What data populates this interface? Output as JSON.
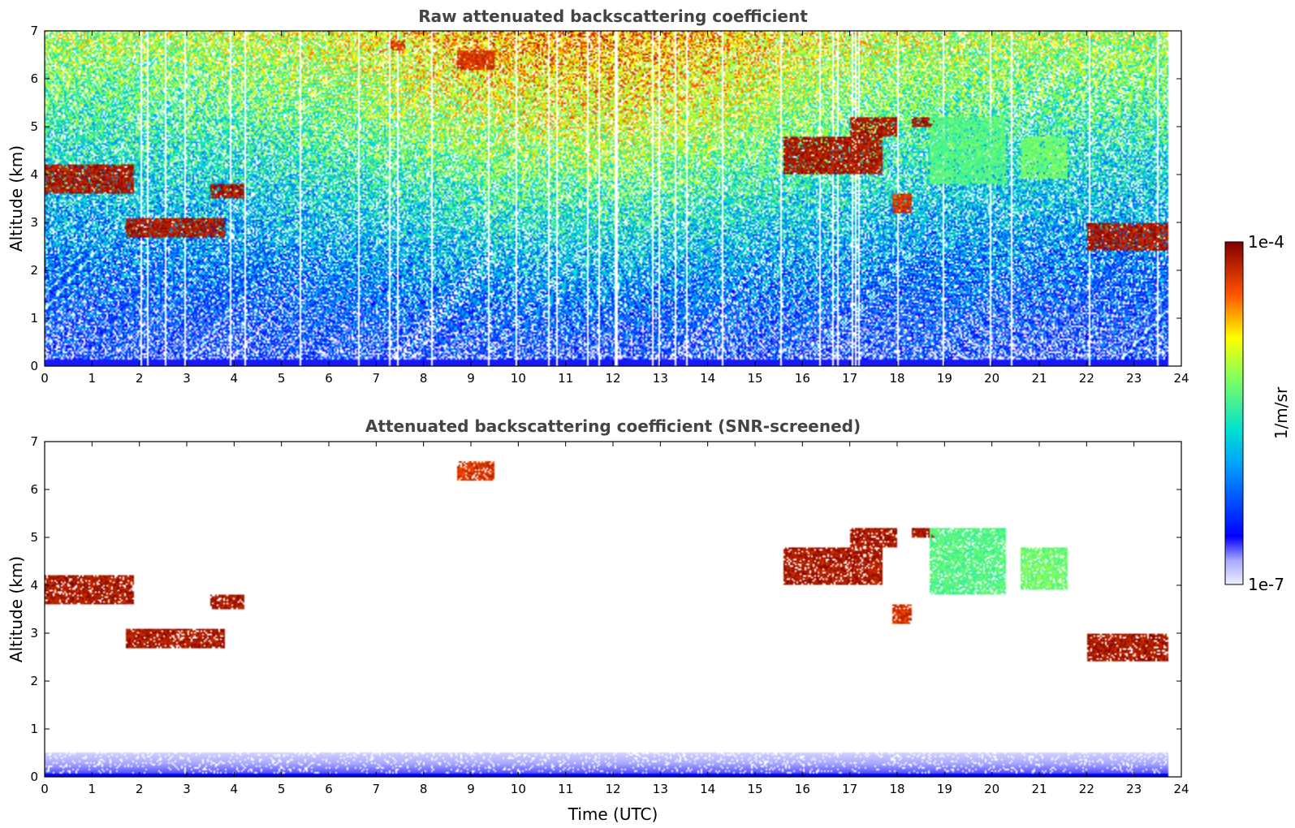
{
  "chart_data": [
    {
      "type": "heatmap",
      "title": "Raw attenuated backscattering coefficient",
      "xlabel": "",
      "ylabel": "Altitude (km)",
      "xlim": [
        0,
        24
      ],
      "ylim": [
        0,
        7
      ],
      "xticks": [
        "0",
        "1",
        "2",
        "3",
        "4",
        "5",
        "6",
        "7",
        "8",
        "9",
        "10",
        "11",
        "12",
        "13",
        "14",
        "15",
        "16",
        "17",
        "18",
        "19",
        "20",
        "21",
        "22",
        "23",
        "24"
      ],
      "yticks": [
        "0",
        "1",
        "2",
        "3",
        "4",
        "5",
        "6",
        "7"
      ],
      "data_end_time": 23.75,
      "background": "noisy",
      "features": [
        {
          "label": "cloud layer",
          "t": [
            0,
            1.9
          ],
          "alt": [
            3.6,
            4.2
          ],
          "intensity": 0.95
        },
        {
          "label": "cloud layer",
          "t": [
            1.7,
            3.8
          ],
          "alt": [
            2.7,
            3.1
          ],
          "intensity": 0.95
        },
        {
          "label": "cloud layer",
          "t": [
            3.5,
            4.2
          ],
          "alt": [
            3.5,
            3.8
          ],
          "intensity": 0.95
        },
        {
          "label": "cloud patch",
          "t": [
            7.3,
            7.6
          ],
          "alt": [
            6.6,
            6.8
          ],
          "intensity": 0.9
        },
        {
          "label": "cloud patch",
          "t": [
            8.7,
            9.5
          ],
          "alt": [
            6.2,
            6.6
          ],
          "intensity": 0.9
        },
        {
          "label": "cloud layer",
          "t": [
            15.6,
            17.7
          ],
          "alt": [
            4.0,
            4.8
          ],
          "intensity": 0.95
        },
        {
          "label": "cloud layer",
          "t": [
            17.0,
            18.0
          ],
          "alt": [
            4.8,
            5.2
          ],
          "intensity": 0.95
        },
        {
          "label": "cloud layer",
          "t": [
            18.3,
            18.8
          ],
          "alt": [
            5.0,
            5.2
          ],
          "intensity": 0.95
        },
        {
          "label": "cloud patch",
          "t": [
            17.9,
            18.3
          ],
          "alt": [
            3.2,
            3.6
          ],
          "intensity": 0.9
        },
        {
          "label": "virga",
          "t": [
            18.7,
            20.3
          ],
          "alt": [
            3.8,
            5.2
          ],
          "intensity": 0.55
        },
        {
          "label": "virga",
          "t": [
            20.6,
            21.6
          ],
          "alt": [
            3.9,
            4.8
          ],
          "intensity": 0.58
        },
        {
          "label": "cloud layer",
          "t": [
            22.0,
            23.8
          ],
          "alt": [
            2.4,
            3.0
          ],
          "intensity": 0.95
        }
      ]
    },
    {
      "type": "heatmap",
      "title": "Attenuated backscattering coefficient (SNR-screened)",
      "xlabel": "Time (UTC)",
      "ylabel": "Altitude (km)",
      "xlim": [
        0,
        24
      ],
      "ylim": [
        0,
        7
      ],
      "xticks": [
        "0",
        "1",
        "2",
        "3",
        "4",
        "5",
        "6",
        "7",
        "8",
        "9",
        "10",
        "11",
        "12",
        "13",
        "14",
        "15",
        "16",
        "17",
        "18",
        "19",
        "20",
        "21",
        "22",
        "23",
        "24"
      ],
      "yticks": [
        "0",
        "1",
        "2",
        "3",
        "4",
        "5",
        "6",
        "7"
      ],
      "data_end_time": 23.75,
      "background": "screened",
      "features": [
        {
          "label": "cloud layer",
          "t": [
            0,
            1.9
          ],
          "alt": [
            3.6,
            4.2
          ],
          "intensity": 0.95
        },
        {
          "label": "cloud layer",
          "t": [
            1.7,
            3.8
          ],
          "alt": [
            2.7,
            3.1
          ],
          "intensity": 0.95
        },
        {
          "label": "cloud layer",
          "t": [
            3.5,
            4.2
          ],
          "alt": [
            3.5,
            3.8
          ],
          "intensity": 0.95
        },
        {
          "label": "cloud patch",
          "t": [
            8.7,
            9.5
          ],
          "alt": [
            6.2,
            6.6
          ],
          "intensity": 0.9
        },
        {
          "label": "cloud layer",
          "t": [
            15.6,
            17.7
          ],
          "alt": [
            4.0,
            4.8
          ],
          "intensity": 0.95
        },
        {
          "label": "cloud layer",
          "t": [
            17.0,
            18.0
          ],
          "alt": [
            4.8,
            5.2
          ],
          "intensity": 0.95
        },
        {
          "label": "cloud layer",
          "t": [
            18.3,
            18.8
          ],
          "alt": [
            5.0,
            5.2
          ],
          "intensity": 0.95
        },
        {
          "label": "cloud patch",
          "t": [
            17.9,
            18.3
          ],
          "alt": [
            3.2,
            3.6
          ],
          "intensity": 0.9
        },
        {
          "label": "virga",
          "t": [
            18.7,
            20.3
          ],
          "alt": [
            3.8,
            5.2
          ],
          "intensity": 0.55
        },
        {
          "label": "virga",
          "t": [
            20.6,
            21.6
          ],
          "alt": [
            3.9,
            4.8
          ],
          "intensity": 0.58
        },
        {
          "label": "cloud layer",
          "t": [
            22.0,
            23.8
          ],
          "alt": [
            2.4,
            3.0
          ],
          "intensity": 0.95
        }
      ]
    }
  ],
  "colorbar": {
    "label": "1/m/sr",
    "max_label": "1e-4",
    "min_label": "1e-7",
    "colormap": "jet",
    "scale": "log"
  }
}
